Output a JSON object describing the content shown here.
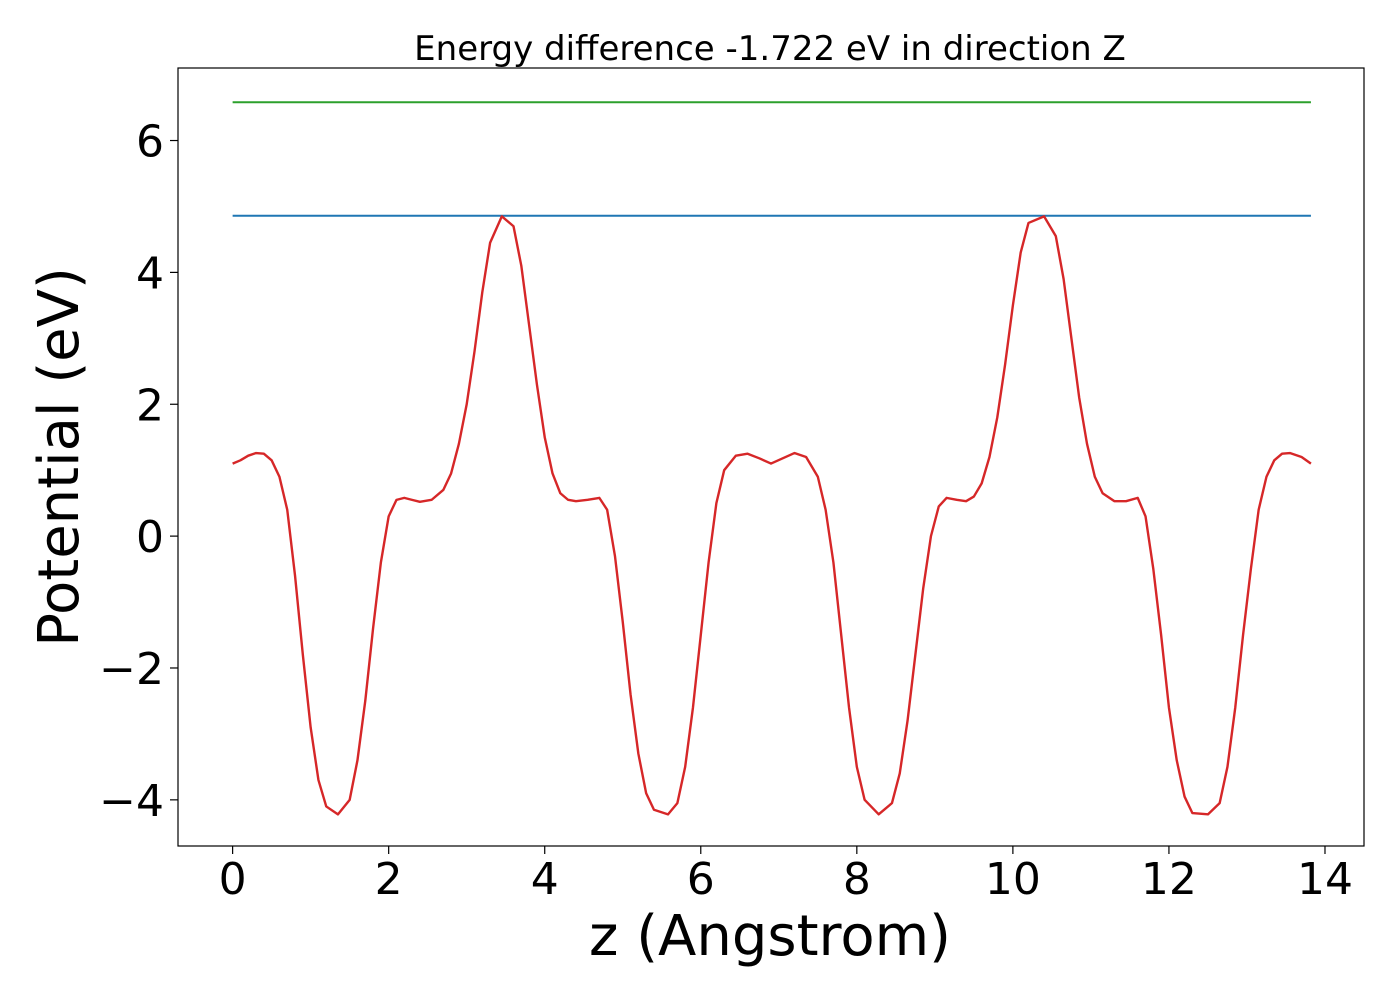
{
  "chart_data": {
    "type": "line",
    "title": "Energy difference -1.722 eV in direction Z",
    "xlabel": "z (Angstrom)",
    "ylabel": "Potential (eV)",
    "xlim": [
      -0.7,
      14.5
    ],
    "ylim": [
      -4.7,
      7.1
    ],
    "xticks": [
      0,
      2,
      4,
      6,
      8,
      10,
      12,
      14
    ],
    "xtick_labels": [
      "0",
      "2",
      "4",
      "6",
      "8",
      "10",
      "12",
      "14"
    ],
    "yticks": [
      -4,
      -2,
      0,
      2,
      4,
      6
    ],
    "ytick_labels": [
      "−4",
      "−2",
      "0",
      "2",
      "4",
      "6"
    ],
    "grid": false,
    "series": [
      {
        "color": "#2ca02c",
        "x": [
          0,
          13.82
        ],
        "y": [
          6.58,
          6.58
        ]
      },
      {
        "color": "#1f77b4",
        "x": [
          0,
          13.82
        ],
        "y": [
          4.86,
          4.86
        ]
      },
      {
        "color": "#d62728",
        "x": [
          0,
          0.1,
          0.2,
          0.3,
          0.4,
          0.5,
          0.6,
          0.7,
          0.8,
          0.9,
          1.0,
          1.1,
          1.2,
          1.35,
          1.5,
          1.6,
          1.7,
          1.8,
          1.9,
          2.0,
          2.1,
          2.2,
          2.3,
          2.4,
          2.55,
          2.7,
          2.8,
          2.9,
          3.0,
          3.1,
          3.2,
          3.3,
          3.45,
          3.6,
          3.7,
          3.8,
          3.9,
          4.0,
          4.1,
          4.2,
          4.3,
          4.4,
          4.55,
          4.7,
          4.8,
          4.9,
          5.0,
          5.1,
          5.2,
          5.3,
          5.4,
          5.58,
          5.7,
          5.8,
          5.9,
          6.0,
          6.1,
          6.2,
          6.3,
          6.45,
          6.6,
          6.75,
          6.9,
          7.05,
          7.2,
          7.35,
          7.5,
          7.6,
          7.7,
          7.8,
          7.9,
          8.0,
          8.1,
          8.28,
          8.45,
          8.55,
          8.65,
          8.75,
          8.85,
          8.95,
          9.05,
          9.15,
          9.28,
          9.4,
          9.5,
          9.6,
          9.7,
          9.8,
          9.9,
          10.0,
          10.1,
          10.2,
          10.4,
          10.55,
          10.65,
          10.75,
          10.85,
          10.95,
          11.05,
          11.15,
          11.3,
          11.45,
          11.6,
          11.7,
          11.8,
          11.9,
          12.0,
          12.1,
          12.2,
          12.3,
          12.5,
          12.65,
          12.75,
          12.85,
          12.95,
          13.05,
          13.15,
          13.25,
          13.35,
          13.45,
          13.55,
          13.7,
          13.82
        ],
        "y": [
          1.1,
          1.15,
          1.22,
          1.26,
          1.25,
          1.15,
          0.9,
          0.4,
          -0.6,
          -1.8,
          -2.9,
          -3.7,
          -4.1,
          -4.22,
          -4.0,
          -3.4,
          -2.5,
          -1.4,
          -0.4,
          0.3,
          0.55,
          0.58,
          0.55,
          0.52,
          0.55,
          0.7,
          0.95,
          1.4,
          2.0,
          2.8,
          3.7,
          4.45,
          4.85,
          4.7,
          4.1,
          3.2,
          2.3,
          1.5,
          0.95,
          0.65,
          0.55,
          0.53,
          0.55,
          0.58,
          0.4,
          -0.3,
          -1.3,
          -2.4,
          -3.3,
          -3.9,
          -4.15,
          -4.22,
          -4.05,
          -3.5,
          -2.6,
          -1.5,
          -0.4,
          0.5,
          1.0,
          1.22,
          1.25,
          1.18,
          1.1,
          1.18,
          1.26,
          1.2,
          0.9,
          0.4,
          -0.4,
          -1.5,
          -2.6,
          -3.5,
          -4.0,
          -4.22,
          -4.05,
          -3.6,
          -2.8,
          -1.8,
          -0.8,
          0.0,
          0.45,
          0.58,
          0.55,
          0.53,
          0.6,
          0.8,
          1.2,
          1.8,
          2.6,
          3.5,
          4.3,
          4.75,
          4.85,
          4.55,
          3.9,
          3.0,
          2.1,
          1.4,
          0.9,
          0.65,
          0.53,
          0.53,
          0.58,
          0.3,
          -0.5,
          -1.5,
          -2.6,
          -3.4,
          -3.95,
          -4.2,
          -4.22,
          -4.05,
          -3.5,
          -2.6,
          -1.5,
          -0.5,
          0.4,
          0.9,
          1.15,
          1.25,
          1.26,
          1.2,
          1.1
        ]
      }
    ]
  }
}
